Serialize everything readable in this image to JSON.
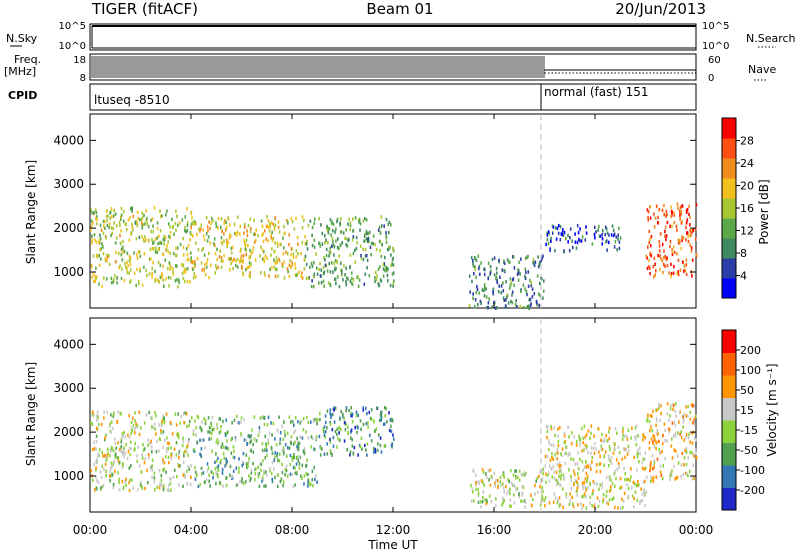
{
  "header": {
    "radar": "TIGER (fitACF)",
    "beam": "Beam 01",
    "date": "20/Jun/2013"
  },
  "left_labels": {
    "nsky": "N.Sky",
    "freq": "Freq.",
    "freq_unit": "[MHz]",
    "cpid": "CPID"
  },
  "right_labels": {
    "nsearch": "N.Search",
    "nave": "Nave"
  },
  "nsky_ticks": [
    "10^5",
    "10^0"
  ],
  "nsearch_ticks": [
    "10^5",
    "10^0"
  ],
  "freq_ticks": [
    "18",
    "8"
  ],
  "nave_ticks": [
    "60",
    "0"
  ],
  "cpid": {
    "seg1": "ltuseq -8510",
    "seg2": "normal (fast) 151"
  },
  "x_axis": {
    "label": "Time UT",
    "ticks": [
      "00:00",
      "04:00",
      "08:00",
      "12:00",
      "16:00",
      "20:00",
      "00:00"
    ]
  },
  "y_axis": {
    "label": "Slant Range [km]",
    "ticks": [
      "1000",
      "2000",
      "3000",
      "4000"
    ]
  },
  "power_scale": {
    "label": "Power [dB]",
    "ticks": [
      "28",
      "24",
      "20",
      "16",
      "12",
      "8",
      "4"
    ],
    "colors": [
      "#0000ff",
      "#2c3ea8",
      "#3e8a5e",
      "#5aa848",
      "#a8c832",
      "#f0c01e",
      "#f08c1e",
      "#ff5014",
      "#ff0000"
    ]
  },
  "velocity_scale": {
    "label": "Velocity [m s⁻¹]",
    "ticks": [
      "200",
      "100",
      "50",
      "15",
      "-15",
      "-50",
      "-100",
      "-200"
    ],
    "colors": [
      "#1e28c8",
      "#3278b4",
      "#50a050",
      "#8cd23c",
      "#c8c8c8",
      "#ff9600",
      "#ff6400",
      "#ff0000"
    ]
  },
  "chart_data": [
    {
      "type": "heatmap",
      "title": "Power",
      "xlabel": "Time UT",
      "ylabel": "Slant Range [km]",
      "xlim": [
        0,
        24
      ],
      "ylim": [
        180,
        4600
      ],
      "colorbar": {
        "label": "Power [dB]",
        "range": [
          0,
          32
        ],
        "ticks": [
          4,
          8,
          12,
          16,
          20,
          24,
          28
        ]
      },
      "cpid_change_hour": 18.0,
      "regions": [
        {
          "t": [
            0.0,
            4.0
          ],
          "r": [
            700,
            2500
          ],
          "power_db": 16
        },
        {
          "t": [
            4.0,
            8.5
          ],
          "r": [
            900,
            2300
          ],
          "power_db": 18
        },
        {
          "t": [
            8.5,
            12.0
          ],
          "r": [
            700,
            2300
          ],
          "power_db": 12
        },
        {
          "t": [
            15.0,
            18.0
          ],
          "r": [
            200,
            1400
          ],
          "power_db": 9
        },
        {
          "t": [
            18.0,
            21.0
          ],
          "r": [
            1500,
            2100
          ],
          "power_db": 6
        },
        {
          "t": [
            22.0,
            24.0
          ],
          "r": [
            900,
            2600
          ],
          "power_db": 26
        }
      ]
    },
    {
      "type": "heatmap",
      "title": "Velocity",
      "xlabel": "Time UT",
      "ylabel": "Slant Range [km]",
      "xlim": [
        0,
        24
      ],
      "ylim": [
        180,
        4600
      ],
      "colorbar": {
        "label": "Velocity [m s⁻¹]",
        "range": [
          -250,
          250
        ],
        "ticks": [
          200,
          100,
          50,
          15,
          -15,
          -50,
          -100,
          -200
        ]
      },
      "cpid_change_hour": 18.0,
      "regions": [
        {
          "t": [
            0.0,
            4.0
          ],
          "r": [
            700,
            2500
          ],
          "velocity": 0
        },
        {
          "t": [
            4.0,
            9.0
          ],
          "r": [
            800,
            2400
          ],
          "velocity": -60
        },
        {
          "t": [
            9.0,
            12.0
          ],
          "r": [
            1500,
            2600
          ],
          "velocity": -120
        },
        {
          "t": [
            15.0,
            18.0
          ],
          "r": [
            300,
            1200
          ],
          "velocity": 0
        },
        {
          "t": [
            18.0,
            22.0
          ],
          "r": [
            300,
            2200
          ],
          "velocity": 30
        },
        {
          "t": [
            22.0,
            24.0
          ],
          "r": [
            900,
            2700
          ],
          "velocity": 60
        }
      ]
    }
  ]
}
